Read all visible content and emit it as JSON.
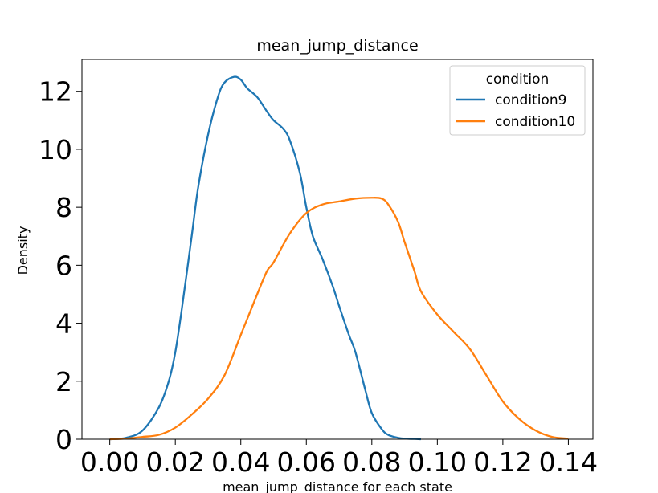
{
  "chart_data": {
    "type": "line",
    "title": "mean_jump_distance",
    "xlabel": "mean_jump_distance for each state",
    "ylabel": "Density",
    "xlim": [
      -0.0085,
      0.1475
    ],
    "ylim": [
      0,
      13.1
    ],
    "x_ticks": [
      "0.00",
      "0.02",
      "0.04",
      "0.06",
      "0.08",
      "0.10",
      "0.12",
      "0.14"
    ],
    "y_ticks": [
      "0",
      "2",
      "4",
      "6",
      "8",
      "10",
      "12"
    ],
    "legend": {
      "title": "condition",
      "placement": "top-right"
    },
    "grid": false,
    "series": [
      {
        "name": "condition9",
        "color": "#1f77b4",
        "x": [
          0.0,
          0.005,
          0.01,
          0.015,
          0.018,
          0.02,
          0.022,
          0.025,
          0.027,
          0.03,
          0.033,
          0.035,
          0.038,
          0.04,
          0.042,
          0.045,
          0.048,
          0.05,
          0.053,
          0.055,
          0.058,
          0.06,
          0.062,
          0.065,
          0.068,
          0.07,
          0.073,
          0.075,
          0.078,
          0.08,
          0.083,
          0.085,
          0.088,
          0.09,
          0.093,
          0.095
        ],
        "values": [
          0.0,
          0.05,
          0.3,
          1.1,
          2.0,
          3.0,
          4.5,
          7.0,
          8.7,
          10.5,
          11.8,
          12.3,
          12.5,
          12.4,
          12.1,
          11.8,
          11.3,
          11.0,
          10.7,
          10.3,
          9.2,
          8.0,
          7.0,
          6.2,
          5.3,
          4.6,
          3.6,
          3.0,
          1.7,
          0.9,
          0.35,
          0.15,
          0.05,
          0.02,
          0.01,
          0.0
        ]
      },
      {
        "name": "condition10",
        "color": "#ff7f0e",
        "x": [
          0.0,
          0.005,
          0.01,
          0.015,
          0.02,
          0.025,
          0.03,
          0.035,
          0.04,
          0.045,
          0.048,
          0.05,
          0.055,
          0.06,
          0.065,
          0.07,
          0.075,
          0.08,
          0.083,
          0.085,
          0.088,
          0.09,
          0.093,
          0.095,
          0.1,
          0.105,
          0.11,
          0.115,
          0.12,
          0.125,
          0.13,
          0.135,
          0.14
        ],
        "values": [
          0.0,
          0.02,
          0.08,
          0.15,
          0.4,
          0.85,
          1.4,
          2.2,
          3.6,
          5.0,
          5.8,
          6.1,
          7.1,
          7.8,
          8.1,
          8.2,
          8.3,
          8.33,
          8.3,
          8.1,
          7.5,
          6.8,
          5.8,
          5.1,
          4.3,
          3.7,
          3.1,
          2.2,
          1.3,
          0.7,
          0.3,
          0.08,
          0.02
        ]
      }
    ]
  }
}
